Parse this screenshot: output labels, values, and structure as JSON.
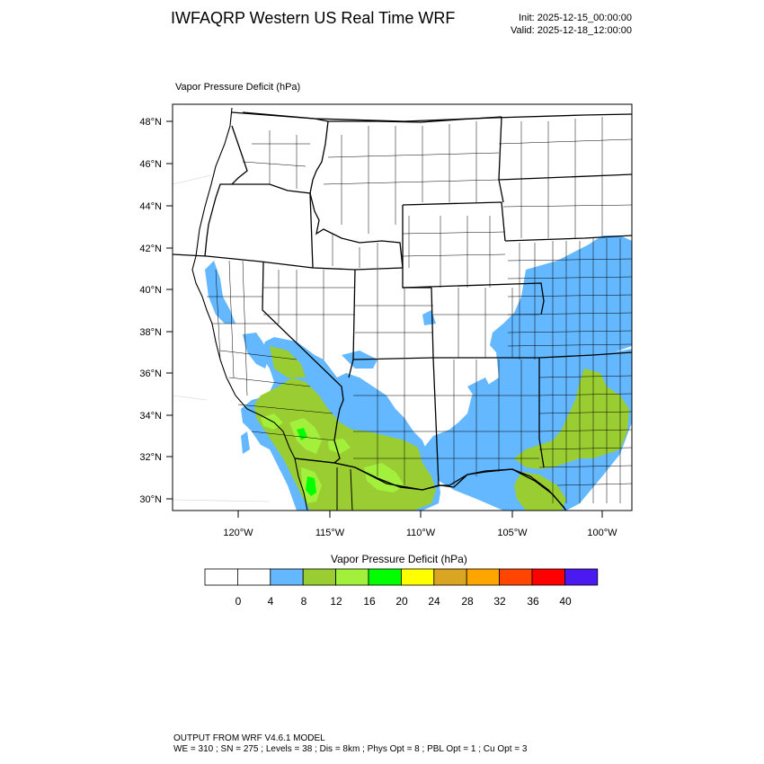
{
  "header": {
    "title": "IWFAQRP Western US Real Time WRF",
    "init": "Init: 2025-12-15_00:00:00",
    "valid": "Valid: 2025-12-18_12:00:00"
  },
  "plot": {
    "field_label": "Vapor Pressure Deficit   (hPa)",
    "lat_labels": [
      "48°N",
      "46°N",
      "44°N",
      "42°N",
      "40°N",
      "38°N",
      "36°N",
      "34°N",
      "32°N",
      "30°N"
    ],
    "lon_labels": [
      "120°W",
      "115°W",
      "110°W",
      "105°W",
      "100°W"
    ]
  },
  "colorbar": {
    "title": "Vapor Pressure Deficit  (hPa)",
    "ticks": [
      "0",
      "4",
      "8",
      "12",
      "16",
      "20",
      "24",
      "28",
      "32",
      "36",
      "40"
    ],
    "colors": [
      "#ffffff",
      "#ffffff",
      "#63b8ff",
      "#9acd32",
      "#a2f03c",
      "#00ff00",
      "#ffff00",
      "#daa520",
      "#ffa500",
      "#ff4500",
      "#ff0000",
      "#4a1af0"
    ]
  },
  "footer": {
    "line1": "OUTPUT FROM WRF V4.6.1 MODEL",
    "line2": "WE = 310 ; SN = 275 ; Levels = 38 ; Dis = 8km ; Phys Opt = 8 ; PBL Opt = 1 ; Cu Opt = 3"
  }
}
